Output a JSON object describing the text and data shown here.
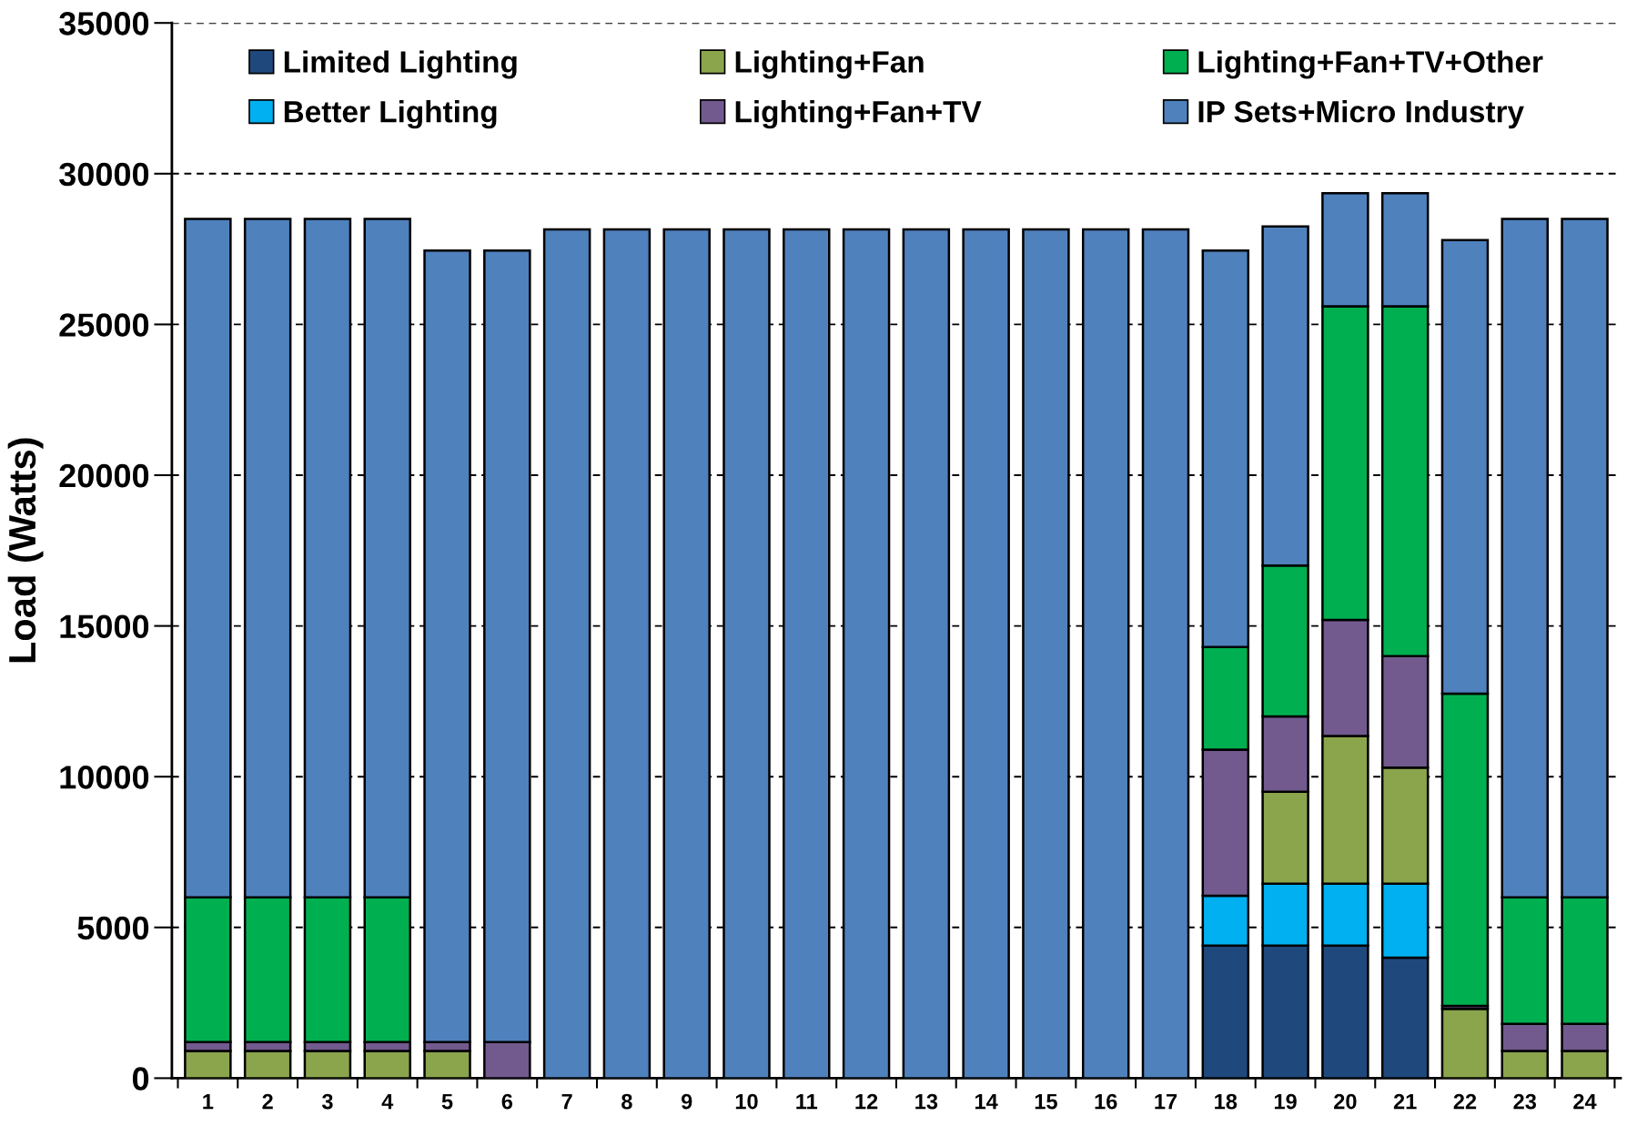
{
  "chart_data": {
    "type": "bar",
    "stacked": true,
    "ylabel": "Load (Watts)",
    "categories": [
      "1",
      "2",
      "3",
      "4",
      "5",
      "6",
      "7",
      "8",
      "9",
      "10",
      "11",
      "12",
      "13",
      "14",
      "15",
      "16",
      "17",
      "18",
      "19",
      "20",
      "21",
      "22",
      "23",
      "24"
    ],
    "series": [
      {
        "name": "Limited Lighting",
        "color": "#1f497d",
        "values": [
          null,
          null,
          null,
          null,
          null,
          null,
          null,
          null,
          null,
          null,
          null,
          null,
          null,
          null,
          null,
          null,
          null,
          4400,
          4400,
          4400,
          4000,
          null,
          null,
          null
        ]
      },
      {
        "name": "Better Lighting",
        "color": "#00b0f0",
        "values": [
          null,
          null,
          null,
          null,
          null,
          null,
          null,
          null,
          null,
          null,
          null,
          null,
          null,
          null,
          null,
          null,
          null,
          1650,
          2050,
          2050,
          2450,
          null,
          null,
          null
        ]
      },
      {
        "name": "Lighting+Fan",
        "color": "#8ba54c",
        "values": [
          900,
          900,
          900,
          900,
          900,
          null,
          null,
          null,
          null,
          null,
          null,
          null,
          null,
          null,
          null,
          null,
          null,
          null,
          3050,
          4900,
          3850,
          2300,
          900,
          900
        ]
      },
      {
        "name": "Lighting+Fan+TV",
        "color": "#725a8f",
        "values": [
          300,
          300,
          300,
          300,
          300,
          1200,
          null,
          null,
          null,
          null,
          null,
          null,
          null,
          null,
          null,
          null,
          null,
          4850,
          2500,
          3850,
          3700,
          100,
          900,
          900
        ]
      },
      {
        "name": "Lighting+Fan+TV+Other",
        "color": "#00b050",
        "values": [
          4800,
          4800,
          4800,
          4800,
          null,
          null,
          null,
          null,
          null,
          null,
          null,
          null,
          null,
          null,
          null,
          null,
          null,
          3400,
          5000,
          10400,
          11600,
          10350,
          4200,
          4200
        ]
      },
      {
        "name": "IP Sets+Micro Industry",
        "color": "#4f81bd",
        "values": [
          22500,
          22500,
          22500,
          22500,
          26250,
          26250,
          28150,
          28150,
          28150,
          28150,
          28150,
          28150,
          28150,
          28150,
          28150,
          28150,
          28150,
          13150,
          11250,
          3750,
          3750,
          15050,
          22500,
          22500
        ]
      }
    ],
    "ylim": [
      0,
      35000
    ],
    "yticks": [
      0,
      5000,
      10000,
      15000,
      20000,
      25000,
      30000,
      35000
    ],
    "grid": "y",
    "legend": "top"
  }
}
